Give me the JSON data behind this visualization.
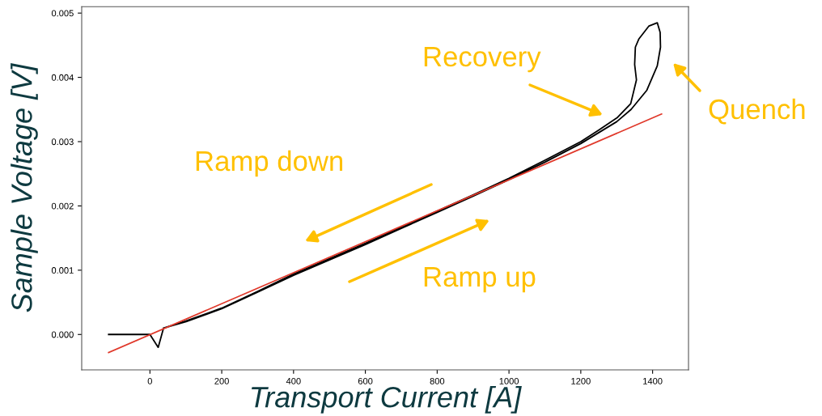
{
  "chart_data": {
    "type": "line",
    "xlabel": "Transport Current [A]",
    "ylabel": "Sample Voltage [V]",
    "xlim": [
      -190,
      1500
    ],
    "ylim": [
      -0.00055,
      0.0051
    ],
    "xticks": [
      0,
      200,
      400,
      600,
      800,
      1000,
      1200,
      1400
    ],
    "yticks": [
      {
        "value": 0,
        "label": "0.000"
      },
      {
        "value": 0.001,
        "label": "0.001"
      },
      {
        "value": 0.002,
        "label": "0.002"
      },
      {
        "value": 0.003,
        "label": "0.003"
      },
      {
        "value": 0.004,
        "label": "0.004"
      },
      {
        "value": 0.005,
        "label": "0.005"
      }
    ],
    "grid": false,
    "marker": "none",
    "line_style": "solid",
    "series": [
      {
        "color": "#000000",
        "x": [
          -115,
          0,
          23,
          38,
          101,
          200,
          300,
          400,
          500,
          600,
          700,
          800,
          900,
          1000,
          1100,
          1200,
          1250,
          1300,
          1340,
          1384,
          1413,
          1422,
          1421,
          1413,
          1390,
          1362,
          1352,
          1350,
          1355,
          1339,
          1301,
          1250,
          1200,
          1100,
          1000,
          900,
          800,
          700,
          600,
          500,
          400,
          300,
          200,
          100,
          38
        ],
        "values": [
          0,
          0,
          -0.0002,
          0.0001,
          0.0002,
          0.0004,
          0.00066,
          0.00092,
          0.00116,
          0.0014,
          0.00165,
          0.0019,
          0.00215,
          0.00241,
          0.00268,
          0.00297,
          0.00314,
          0.00331,
          0.0035,
          0.0038,
          0.00418,
          0.00447,
          0.0047,
          0.00485,
          0.0048,
          0.0046,
          0.00447,
          0.0042,
          0.00396,
          0.00359,
          0.00337,
          0.00318,
          0.003,
          0.00271,
          0.00243,
          0.00217,
          0.00192,
          0.00167,
          0.00142,
          0.00118,
          0.00094,
          0.00067,
          0.00041,
          0.00021,
          0.0001
        ]
      },
      {
        "color": "#e0392b",
        "x": [
          -115,
          1425
        ],
        "values": [
          -0.00028,
          0.00343
        ]
      }
    ],
    "annotations": [
      "Recovery",
      "Quench",
      "Ramp down",
      "Ramp up"
    ]
  }
}
